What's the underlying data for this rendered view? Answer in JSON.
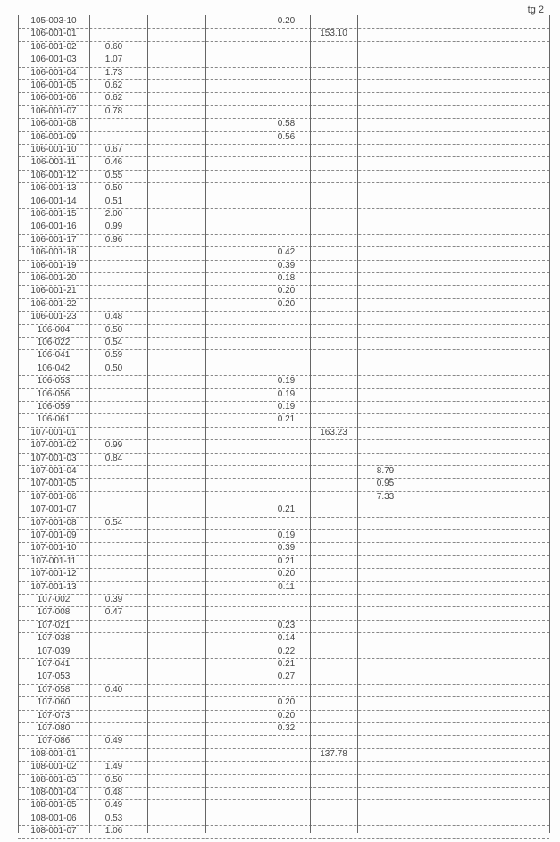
{
  "page_label": "tg 2",
  "rows": [
    [
      "105-003-10",
      "",
      "0.20",
      "",
      ""
    ],
    [
      "106-001-01",
      "",
      "",
      "153.10",
      ""
    ],
    [
      "106-001-02",
      "0.60",
      "",
      "",
      ""
    ],
    [
      "106-001-03",
      "1.07",
      "",
      "",
      ""
    ],
    [
      "106-001-04",
      "1.73",
      "",
      "",
      ""
    ],
    [
      "106-001-05",
      "0.62",
      "",
      "",
      ""
    ],
    [
      "106-001-06",
      "0.62",
      "",
      "",
      ""
    ],
    [
      "106-001-07",
      "0.78",
      "",
      "",
      ""
    ],
    [
      "106-001-08",
      "",
      "0.58",
      "",
      ""
    ],
    [
      "106-001-09",
      "",
      "0.56",
      "",
      ""
    ],
    [
      "106-001-10",
      "0.67",
      "",
      "",
      ""
    ],
    [
      "106-001-11",
      "0.46",
      "",
      "",
      ""
    ],
    [
      "106-001-12",
      "0.55",
      "",
      "",
      ""
    ],
    [
      "106-001-13",
      "0.50",
      "",
      "",
      ""
    ],
    [
      "106-001-14",
      "0.51",
      "",
      "",
      ""
    ],
    [
      "106-001-15",
      "2.00",
      "",
      "",
      ""
    ],
    [
      "106-001-16",
      "0.99",
      "",
      "",
      ""
    ],
    [
      "106-001-17",
      "0.96",
      "",
      "",
      ""
    ],
    [
      "106-001-18",
      "",
      "0.42",
      "",
      ""
    ],
    [
      "106-001-19",
      "",
      "0.39",
      "",
      ""
    ],
    [
      "106-001-20",
      "",
      "0.18",
      "",
      ""
    ],
    [
      "106-001-21",
      "",
      "0.20",
      "",
      ""
    ],
    [
      "106-001-22",
      "",
      "0.20",
      "",
      ""
    ],
    [
      "106-001-23",
      "0.48",
      "",
      "",
      ""
    ],
    [
      "106-004",
      "0.50",
      "",
      "",
      ""
    ],
    [
      "106-022",
      "0.54",
      "",
      "",
      ""
    ],
    [
      "106-041",
      "0.59",
      "",
      "",
      ""
    ],
    [
      "106-042",
      "0.50",
      "",
      "",
      ""
    ],
    [
      "106-053",
      "",
      "0.19",
      "",
      ""
    ],
    [
      "106-056",
      "",
      "0.19",
      "",
      ""
    ],
    [
      "106-059",
      "",
      "0.19",
      "",
      ""
    ],
    [
      "106-061",
      "",
      "0.21",
      "",
      ""
    ],
    [
      "107-001-01",
      "",
      "",
      "163.23",
      ""
    ],
    [
      "107-001-02",
      "0.99",
      "",
      "",
      ""
    ],
    [
      "107-001-03",
      "0.84",
      "",
      "",
      ""
    ],
    [
      "107-001-04",
      "",
      "",
      "",
      "8.79"
    ],
    [
      "107-001-05",
      "",
      "",
      "",
      "0.95"
    ],
    [
      "107-001-06",
      "",
      "",
      "",
      "7.33"
    ],
    [
      "107-001-07",
      "",
      "0.21",
      "",
      ""
    ],
    [
      "107-001-08",
      "0.54",
      "",
      "",
      ""
    ],
    [
      "107-001-09",
      "",
      "0.19",
      "",
      ""
    ],
    [
      "107-001-10",
      "",
      "0.39",
      "",
      ""
    ],
    [
      "107-001-11",
      "",
      "0.21",
      "",
      ""
    ],
    [
      "107-001-12",
      "",
      "0.20",
      "",
      ""
    ],
    [
      "107-001-13",
      "",
      "0.11",
      "",
      ""
    ],
    [
      "107-002",
      "0.39",
      "",
      "",
      ""
    ],
    [
      "107-008",
      "0.47",
      "",
      "",
      ""
    ],
    [
      "107-021",
      "",
      "0.23",
      "",
      ""
    ],
    [
      "107-038",
      "",
      "0.14",
      "",
      ""
    ],
    [
      "107-039",
      "",
      "0.22",
      "",
      ""
    ],
    [
      "107-041",
      "",
      "0.21",
      "",
      ""
    ],
    [
      "107-053",
      "",
      "0.27",
      "",
      ""
    ],
    [
      "107-058",
      "0.40",
      "",
      "",
      ""
    ],
    [
      "107-060",
      "",
      "0.20",
      "",
      ""
    ],
    [
      "107-073",
      "",
      "0.20",
      "",
      ""
    ],
    [
      "107-080",
      "",
      "0.32",
      "",
      ""
    ],
    [
      "107-086",
      "0.49",
      "",
      "",
      ""
    ],
    [
      "108-001-01",
      "",
      "",
      "137.78",
      ""
    ],
    [
      "108-001-02",
      "1.49",
      "",
      "",
      ""
    ],
    [
      "108-001-03",
      "0.50",
      "",
      "",
      ""
    ],
    [
      "108-001-04",
      "0.48",
      "",
      "",
      ""
    ],
    [
      "108-001-05",
      "0.49",
      "",
      "",
      ""
    ],
    [
      "108-001-06",
      "0.53",
      "",
      "",
      ""
    ],
    [
      "108-001-07",
      "1.06",
      "",
      "",
      ""
    ]
  ]
}
